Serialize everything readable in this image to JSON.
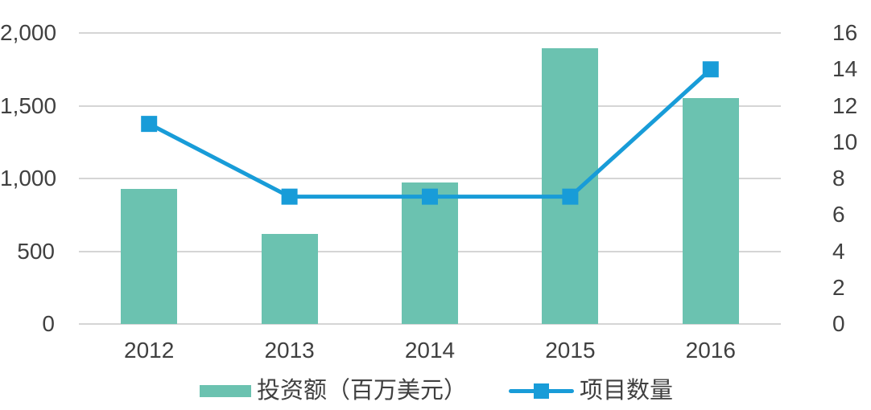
{
  "title": "",
  "colors": {
    "bar": "#6BC2B0",
    "line": "#189CD8",
    "grid": "#D5D5D5",
    "text": "#404040",
    "background": "#FFFFFF"
  },
  "chart_data": {
    "type": "bar",
    "subtype": "combo-bar-line-dual-axis",
    "categories": [
      "2012",
      "2013",
      "2014",
      "2015",
      "2016"
    ],
    "series": [
      {
        "name": "投资额（百万美元）",
        "type": "bar",
        "axis": "left",
        "color": "#6BC2B0",
        "values": [
          930,
          620,
          975,
          1895,
          1555
        ]
      },
      {
        "name": "项目数量",
        "type": "line",
        "axis": "right",
        "color": "#189CD8",
        "marker": "square",
        "values": [
          11,
          7,
          7,
          7,
          14
        ]
      }
    ],
    "title": "",
    "xlabel": "",
    "ylabel_left": "",
    "ylabel_right": "",
    "left_axis": {
      "min": 0,
      "max": 2000,
      "tick_values": [
        2000,
        1500,
        1000,
        500,
        0
      ],
      "tick_labels": [
        "2,000",
        "1,500",
        "1,000",
        "500",
        "0"
      ]
    },
    "right_axis": {
      "min": 0,
      "max": 16,
      "tick_values": [
        16,
        14,
        12,
        10,
        8,
        6,
        4,
        2,
        0
      ],
      "tick_labels": [
        "16",
        "14",
        "12",
        "10",
        "8",
        "6",
        "4",
        "2",
        "0"
      ]
    },
    "grid": true,
    "legend_position": "bottom"
  },
  "legend": {
    "items": [
      {
        "label": "投资额（百万美元）"
      },
      {
        "label": "项目数量"
      }
    ]
  }
}
